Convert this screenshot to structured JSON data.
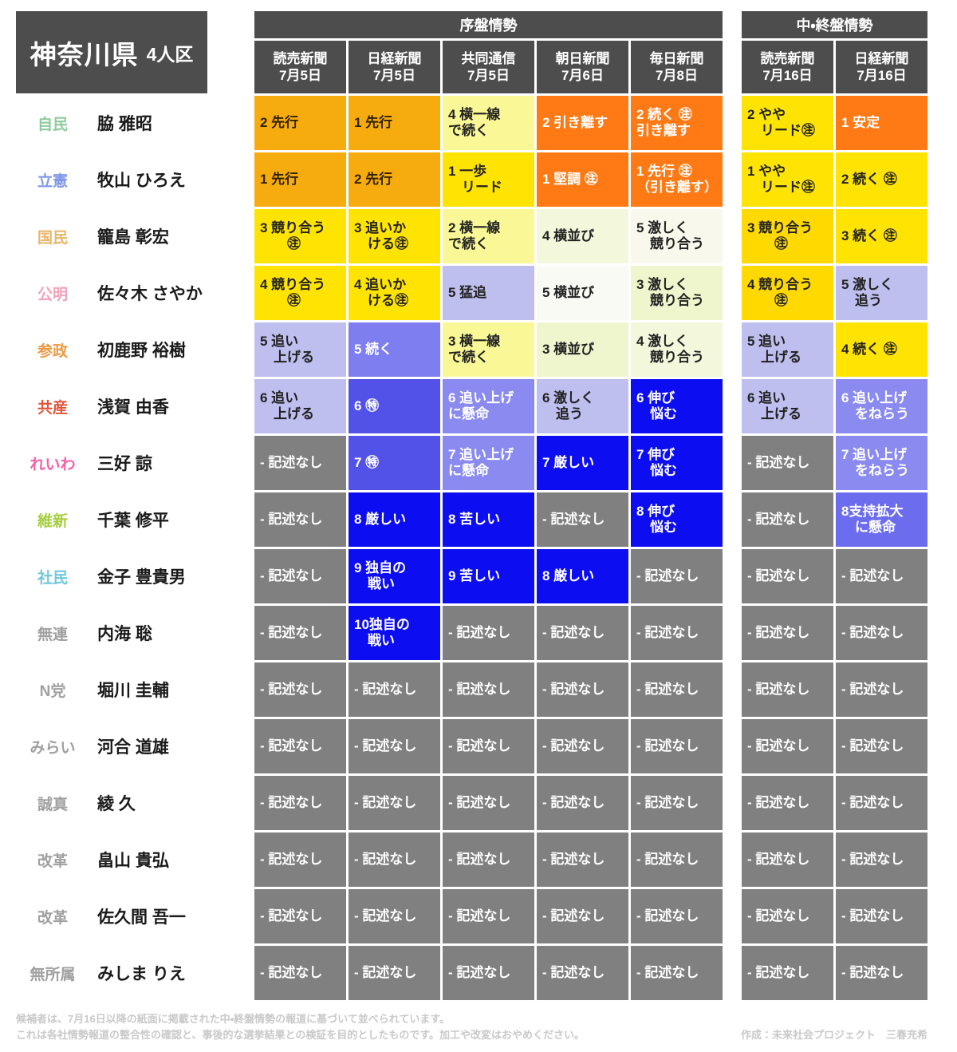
{
  "title": {
    "prefecture": "神奈川県",
    "district": "4人区"
  },
  "header": {
    "group1": {
      "label": "序盤情勢",
      "columns": [
        {
          "paper": "読売新聞",
          "date": "7月5日"
        },
        {
          "paper": "日経新聞",
          "date": "7月5日"
        },
        {
          "paper": "共同通信",
          "date": "7月5日"
        },
        {
          "paper": "朝日新聞",
          "date": "7月6日"
        },
        {
          "paper": "毎日新聞",
          "date": "7月8日"
        }
      ]
    },
    "group2": {
      "label": "中・終盤情勢",
      "columns": [
        {
          "paper": "読売新聞",
          "date": "7月16日"
        },
        {
          "paper": "日経新聞",
          "date": "7月16日"
        }
      ]
    }
  },
  "rows": [
    {
      "party": "自民",
      "party_color": "#8fcb9e",
      "candidate": "脇 雅昭",
      "cells": [
        {
          "text": "2 先行",
          "bg": "#f6ac0f",
          "fg": "#332200"
        },
        {
          "text": "1 先行",
          "bg": "#f6ac0f",
          "fg": "#332200"
        },
        {
          "text": "4 横一線\nで続く",
          "bg": "#faf896",
          "fg": "#222222"
        },
        {
          "text": "2 引き離す",
          "bg": "#ff7a14",
          "fg": "#ffffff"
        },
        {
          "text": "2 続く ㊟\n引き離す",
          "bg": "#ff7a14",
          "fg": "#ffffff"
        },
        {
          "text": "2 やや\n　リード㊟",
          "bg": "#ffe403",
          "fg": "#222222"
        },
        {
          "text": "1 安定",
          "bg": "#ff7a14",
          "fg": "#ffffff"
        }
      ]
    },
    {
      "party": "立憲",
      "party_color": "#7e96e8",
      "candidate": "牧山 ひろえ",
      "cells": [
        {
          "text": "1 先行",
          "bg": "#f6ac0f",
          "fg": "#332200"
        },
        {
          "text": "2 先行",
          "bg": "#f6ac0f",
          "fg": "#332200"
        },
        {
          "text": "1 一歩\n　リード",
          "bg": "#ffe403",
          "fg": "#222222"
        },
        {
          "text": "1 堅調 ㊟",
          "bg": "#ff7a14",
          "fg": "#ffffff"
        },
        {
          "text": "1 先行 ㊟\n（引き離す）",
          "bg": "#ff7a14",
          "fg": "#ffffff"
        },
        {
          "text": "1 やや\n　リード㊟",
          "bg": "#ffe403",
          "fg": "#222222"
        },
        {
          "text": "2 続く ㊟",
          "bg": "#ffe403",
          "fg": "#222222"
        }
      ]
    },
    {
      "party": "国民",
      "party_color": "#e8b66b",
      "candidate": "籠島 彰宏",
      "cells": [
        {
          "text": "3 競り合う\n　　㊟",
          "bg": "#ffe403",
          "fg": "#222222"
        },
        {
          "text": "3 追いか\n　ける㊟",
          "bg": "#ffe403",
          "fg": "#222222"
        },
        {
          "text": "2 横一線\nで続く",
          "bg": "#faf896",
          "fg": "#222222"
        },
        {
          "text": "4 横並び",
          "bg": "#f3f7db",
          "fg": "#222222"
        },
        {
          "text": "5 激しく\n　競り合う",
          "bg": "#f8f9ec",
          "fg": "#222222"
        },
        {
          "text": "3 競り合う\n　　㊟",
          "bg": "#ffd900",
          "fg": "#222222"
        },
        {
          "text": "3 続く ㊟",
          "bg": "#ffe403",
          "fg": "#222222"
        }
      ]
    },
    {
      "party": "公明",
      "party_color": "#f2a3bc",
      "candidate": "佐々木 さやか",
      "cells": [
        {
          "text": "4 競り合う\n　　㊟",
          "bg": "#ffe403",
          "fg": "#222222"
        },
        {
          "text": "4 追いか\n　ける㊟",
          "bg": "#ffe403",
          "fg": "#222222"
        },
        {
          "text": "5 猛追",
          "bg": "#bebeef",
          "fg": "#222222"
        },
        {
          "text": "5 横並び",
          "bg": "#fafaf4",
          "fg": "#222222"
        },
        {
          "text": "3 激しく\n　競り合う",
          "bg": "#eff5cc",
          "fg": "#222222"
        },
        {
          "text": "4 競り合う\n　　㊟",
          "bg": "#ffd900",
          "fg": "#222222"
        },
        {
          "text": "5 激しく\n　追う",
          "bg": "#bebeef",
          "fg": "#222222"
        }
      ]
    },
    {
      "party": "参政",
      "party_color": "#ec9a45",
      "candidate": "初鹿野 裕樹",
      "cells": [
        {
          "text": "5 追い\n　上げる",
          "bg": "#bebeef",
          "fg": "#222222"
        },
        {
          "text": "5 続く",
          "bg": "#7e7ef0",
          "fg": "#ffffff"
        },
        {
          "text": "3 横一線\nで続く",
          "bg": "#faf896",
          "fg": "#222222"
        },
        {
          "text": "3 横並び",
          "bg": "#eff5cc",
          "fg": "#222222"
        },
        {
          "text": "4 激しく\n　競り合う",
          "bg": "#f3f7db",
          "fg": "#222222"
        },
        {
          "text": "5 追い\n　上げる",
          "bg": "#bebeef",
          "fg": "#222222"
        },
        {
          "text": "4 続く ㊟",
          "bg": "#ffe403",
          "fg": "#222222"
        }
      ]
    },
    {
      "party": "共産",
      "party_color": "#e1543a",
      "candidate": "浅賀 由香",
      "cells": [
        {
          "text": "6 追い\n　上げる",
          "bg": "#bebeef",
          "fg": "#222222"
        },
        {
          "text": "6 ㊕",
          "bg": "#5252e8",
          "fg": "#ffffff"
        },
        {
          "text": "6 追い上げ\nに懸命",
          "bg": "#8a8af0",
          "fg": "#ffffff"
        },
        {
          "text": "6 激しく\n　追う",
          "bg": "#bebeef",
          "fg": "#222222"
        },
        {
          "text": "6 伸び\n　悩む",
          "bg": "#0d0df2",
          "fg": "#ffffff"
        },
        {
          "text": "6 追い\n　上げる",
          "bg": "#bebeef",
          "fg": "#222222"
        },
        {
          "text": "6 追い上げ\n　をねらう",
          "bg": "#8a8af0",
          "fg": "#ffffff"
        }
      ]
    },
    {
      "party": "れいわ",
      "party_color": "#f45fa9",
      "candidate": "三好 諒",
      "cells": [
        {
          "text": "- 記述なし",
          "bg": "#808080",
          "fg": "#ffffff"
        },
        {
          "text": "7 ㊕",
          "bg": "#5252e8",
          "fg": "#ffffff"
        },
        {
          "text": "7 追い上げ\nに懸命",
          "bg": "#8a8af0",
          "fg": "#ffffff"
        },
        {
          "text": "7 厳しい",
          "bg": "#0d0df2",
          "fg": "#ffffff"
        },
        {
          "text": "7 伸び\n　悩む",
          "bg": "#0d0df2",
          "fg": "#ffffff"
        },
        {
          "text": "- 記述なし",
          "bg": "#808080",
          "fg": "#ffffff"
        },
        {
          "text": "7 追い上げ\n　をねらう",
          "bg": "#8a8af0",
          "fg": "#ffffff"
        }
      ]
    },
    {
      "party": "維新",
      "party_color": "#a5ce3c",
      "candidate": "千葉 修平",
      "cells": [
        {
          "text": "- 記述なし",
          "bg": "#808080",
          "fg": "#ffffff"
        },
        {
          "text": "8 厳しい",
          "bg": "#0d0df2",
          "fg": "#ffffff"
        },
        {
          "text": "8 苦しい",
          "bg": "#0d0df2",
          "fg": "#ffffff"
        },
        {
          "text": "- 記述なし",
          "bg": "#808080",
          "fg": "#ffffff"
        },
        {
          "text": "8 伸び\n　悩む",
          "bg": "#0d0df2",
          "fg": "#ffffff"
        },
        {
          "text": "- 記述なし",
          "bg": "#808080",
          "fg": "#ffffff"
        },
        {
          "text": "8支持拡大\n　に懸命",
          "bg": "#6c6cef",
          "fg": "#ffffff"
        }
      ]
    },
    {
      "party": "社民",
      "party_color": "#6fc8dc",
      "candidate": "金子 豊貴男",
      "cells": [
        {
          "text": "- 記述なし",
          "bg": "#808080",
          "fg": "#ffffff"
        },
        {
          "text": "9 独自の\n　戦い",
          "bg": "#0d0df2",
          "fg": "#ffffff"
        },
        {
          "text": "9 苦しい",
          "bg": "#0d0df2",
          "fg": "#ffffff"
        },
        {
          "text": "8 厳しい",
          "bg": "#0d0df2",
          "fg": "#ffffff"
        },
        {
          "text": "- 記述なし",
          "bg": "#808080",
          "fg": "#ffffff"
        },
        {
          "text": "- 記述なし",
          "bg": "#808080",
          "fg": "#ffffff"
        },
        {
          "text": "- 記述なし",
          "bg": "#808080",
          "fg": "#ffffff"
        }
      ]
    },
    {
      "party": "無連",
      "party_color": "#a0a0a0",
      "candidate": "内海 聡",
      "cells": [
        {
          "text": "- 記述なし",
          "bg": "#808080",
          "fg": "#ffffff"
        },
        {
          "text": "10独自の\n　戦い",
          "bg": "#0d0df2",
          "fg": "#ffffff"
        },
        {
          "text": "- 記述なし",
          "bg": "#808080",
          "fg": "#ffffff"
        },
        {
          "text": "- 記述なし",
          "bg": "#808080",
          "fg": "#ffffff"
        },
        {
          "text": "- 記述なし",
          "bg": "#808080",
          "fg": "#ffffff"
        },
        {
          "text": "- 記述なし",
          "bg": "#808080",
          "fg": "#ffffff"
        },
        {
          "text": "- 記述なし",
          "bg": "#808080",
          "fg": "#ffffff"
        }
      ]
    },
    {
      "party": "N党",
      "party_color": "#a0a0a0",
      "candidate": "堀川 圭輔",
      "cells": [
        {
          "text": "- 記述なし",
          "bg": "#808080",
          "fg": "#ffffff"
        },
        {
          "text": "- 記述なし",
          "bg": "#808080",
          "fg": "#ffffff"
        },
        {
          "text": "- 記述なし",
          "bg": "#808080",
          "fg": "#ffffff"
        },
        {
          "text": "- 記述なし",
          "bg": "#808080",
          "fg": "#ffffff"
        },
        {
          "text": "- 記述なし",
          "bg": "#808080",
          "fg": "#ffffff"
        },
        {
          "text": "- 記述なし",
          "bg": "#808080",
          "fg": "#ffffff"
        },
        {
          "text": "- 記述なし",
          "bg": "#808080",
          "fg": "#ffffff"
        }
      ]
    },
    {
      "party": "みらい",
      "party_color": "#a0a0a0",
      "candidate": "河合 道雄",
      "cells": [
        {
          "text": "- 記述なし",
          "bg": "#808080",
          "fg": "#ffffff"
        },
        {
          "text": "- 記述なし",
          "bg": "#808080",
          "fg": "#ffffff"
        },
        {
          "text": "- 記述なし",
          "bg": "#808080",
          "fg": "#ffffff"
        },
        {
          "text": "- 記述なし",
          "bg": "#808080",
          "fg": "#ffffff"
        },
        {
          "text": "- 記述なし",
          "bg": "#808080",
          "fg": "#ffffff"
        },
        {
          "text": "- 記述なし",
          "bg": "#808080",
          "fg": "#ffffff"
        },
        {
          "text": "- 記述なし",
          "bg": "#808080",
          "fg": "#ffffff"
        }
      ]
    },
    {
      "party": "誠真",
      "party_color": "#a0a0a0",
      "candidate": "綾 久",
      "cells": [
        {
          "text": "- 記述なし",
          "bg": "#808080",
          "fg": "#ffffff"
        },
        {
          "text": "- 記述なし",
          "bg": "#808080",
          "fg": "#ffffff"
        },
        {
          "text": "- 記述なし",
          "bg": "#808080",
          "fg": "#ffffff"
        },
        {
          "text": "- 記述なし",
          "bg": "#808080",
          "fg": "#ffffff"
        },
        {
          "text": "- 記述なし",
          "bg": "#808080",
          "fg": "#ffffff"
        },
        {
          "text": "- 記述なし",
          "bg": "#808080",
          "fg": "#ffffff"
        },
        {
          "text": "- 記述なし",
          "bg": "#808080",
          "fg": "#ffffff"
        }
      ]
    },
    {
      "party": "改革",
      "party_color": "#a0a0a0",
      "candidate": "畠山 貴弘",
      "cells": [
        {
          "text": "- 記述なし",
          "bg": "#808080",
          "fg": "#ffffff"
        },
        {
          "text": "- 記述なし",
          "bg": "#808080",
          "fg": "#ffffff"
        },
        {
          "text": "- 記述なし",
          "bg": "#808080",
          "fg": "#ffffff"
        },
        {
          "text": "- 記述なし",
          "bg": "#808080",
          "fg": "#ffffff"
        },
        {
          "text": "- 記述なし",
          "bg": "#808080",
          "fg": "#ffffff"
        },
        {
          "text": "- 記述なし",
          "bg": "#808080",
          "fg": "#ffffff"
        },
        {
          "text": "- 記述なし",
          "bg": "#808080",
          "fg": "#ffffff"
        }
      ]
    },
    {
      "party": "改革",
      "party_color": "#a0a0a0",
      "candidate": "佐久間 吾一",
      "cells": [
        {
          "text": "- 記述なし",
          "bg": "#808080",
          "fg": "#ffffff"
        },
        {
          "text": "- 記述なし",
          "bg": "#808080",
          "fg": "#ffffff"
        },
        {
          "text": "- 記述なし",
          "bg": "#808080",
          "fg": "#ffffff"
        },
        {
          "text": "- 記述なし",
          "bg": "#808080",
          "fg": "#ffffff"
        },
        {
          "text": "- 記述なし",
          "bg": "#808080",
          "fg": "#ffffff"
        },
        {
          "text": "- 記述なし",
          "bg": "#808080",
          "fg": "#ffffff"
        },
        {
          "text": "- 記述なし",
          "bg": "#808080",
          "fg": "#ffffff"
        }
      ]
    },
    {
      "party": "無所属",
      "party_color": "#a0a0a0",
      "candidate": "みしま りえ",
      "cells": [
        {
          "text": "- 記述なし",
          "bg": "#808080",
          "fg": "#ffffff"
        },
        {
          "text": "- 記述なし",
          "bg": "#808080",
          "fg": "#ffffff"
        },
        {
          "text": "- 記述なし",
          "bg": "#808080",
          "fg": "#ffffff"
        },
        {
          "text": "- 記述なし",
          "bg": "#808080",
          "fg": "#ffffff"
        },
        {
          "text": "- 記述なし",
          "bg": "#808080",
          "fg": "#ffffff"
        },
        {
          "text": "- 記述なし",
          "bg": "#808080",
          "fg": "#ffffff"
        },
        {
          "text": "- 記述なし",
          "bg": "#808080",
          "fg": "#ffffff"
        }
      ]
    }
  ],
  "footer": {
    "note1": "候補者は、7月16日以降の紙面に掲載された中・終盤情勢の報道に基づいて並べられています。",
    "note2": "これは各社情勢報道の整合性の確認と、事後的な選挙結果との検証を目的としたものです。加工や改変はおやめください。",
    "credit": "作成：未来社会プロジェクト　三春充希"
  },
  "chart_data": {
    "type": "table",
    "title": "神奈川県 4人区 情勢報道比較",
    "column_groups": [
      "序盤情勢",
      "中・終盤情勢"
    ],
    "columns": [
      "読売新聞 7月5日",
      "日経新聞 7月5日",
      "共同通信 7月5日",
      "朝日新聞 7月6日",
      "毎日新聞 7月8日",
      "読売新聞 7月16日",
      "日経新聞 7月16日"
    ],
    "rows": [
      {
        "party": "自民",
        "candidate": "脇 雅昭",
        "values": [
          "2 先行",
          "1 先行",
          "4 横一線で続く",
          "2 引き離す",
          "2 続く㊟ 引き離す",
          "2 ややリード㊟",
          "1 安定"
        ]
      },
      {
        "party": "立憲",
        "candidate": "牧山 ひろえ",
        "values": [
          "1 先行",
          "2 先行",
          "1 一歩リード",
          "1 堅調㊟",
          "1 先行㊟（引き離す）",
          "1 ややリード㊟",
          "2 続く㊟"
        ]
      },
      {
        "party": "国民",
        "candidate": "籠島 彰宏",
        "values": [
          "3 競り合う㊟",
          "3 追いかける㊟",
          "2 横一線で続く",
          "4 横並び",
          "5 激しく競り合う",
          "3 競り合う㊟",
          "3 続く㊟"
        ]
      },
      {
        "party": "公明",
        "candidate": "佐々木 さやか",
        "values": [
          "4 競り合う㊟",
          "4 追いかける㊟",
          "5 猛追",
          "5 横並び",
          "3 激しく競り合う",
          "4 競り合う㊟",
          "5 激しく追う"
        ]
      },
      {
        "party": "参政",
        "candidate": "初鹿野 裕樹",
        "values": [
          "5 追い上げる",
          "5 続く",
          "3 横一線で続く",
          "3 横並び",
          "4 激しく競り合う",
          "5 追い上げる",
          "4 続く㊟"
        ]
      },
      {
        "party": "共産",
        "candidate": "浅賀 由香",
        "values": [
          "6 追い上げる",
          "6 ㊕",
          "6 追い上げに懸命",
          "6 激しく追う",
          "6 伸び悩む",
          "6 追い上げる",
          "6 追い上げをねらう"
        ]
      },
      {
        "party": "れいわ",
        "candidate": "三好 諒",
        "values": [
          "- 記述なし",
          "7 ㊕",
          "7 追い上げに懸命",
          "7 厳しい",
          "7 伸び悩む",
          "- 記述なし",
          "7 追い上げをねらう"
        ]
      },
      {
        "party": "維新",
        "candidate": "千葉 修平",
        "values": [
          "- 記述なし",
          "8 厳しい",
          "8 苦しい",
          "- 記述なし",
          "8 伸び悩む",
          "- 記述なし",
          "8 支持拡大に懸命"
        ]
      },
      {
        "party": "社民",
        "candidate": "金子 豊貴男",
        "values": [
          "- 記述なし",
          "9 独自の戦い",
          "9 苦しい",
          "8 厳しい",
          "- 記述なし",
          "- 記述なし",
          "- 記述なし"
        ]
      },
      {
        "party": "無連",
        "candidate": "内海 聡",
        "values": [
          "- 記述なし",
          "10 独自の戦い",
          "- 記述なし",
          "- 記述なし",
          "- 記述なし",
          "- 記述なし",
          "- 記述なし"
        ]
      },
      {
        "party": "N党",
        "candidate": "堀川 圭輔",
        "values": [
          "- 記述なし",
          "- 記述なし",
          "- 記述なし",
          "- 記述なし",
          "- 記述なし",
          "- 記述なし",
          "- 記述なし"
        ]
      },
      {
        "party": "みらい",
        "candidate": "河合 道雄",
        "values": [
          "- 記述なし",
          "- 記述なし",
          "- 記述なし",
          "- 記述なし",
          "- 記述なし",
          "- 記述なし",
          "- 記述なし"
        ]
      },
      {
        "party": "誠真",
        "candidate": "綾 久",
        "values": [
          "- 記述なし",
          "- 記述なし",
          "- 記述なし",
          "- 記述なし",
          "- 記述なし",
          "- 記述なし",
          "- 記述なし"
        ]
      },
      {
        "party": "改革",
        "candidate": "畠山 貴弘",
        "values": [
          "- 記述なし",
          "- 記述なし",
          "- 記述なし",
          "- 記述なし",
          "- 記述なし",
          "- 記述なし",
          "- 記述なし"
        ]
      },
      {
        "party": "改革",
        "candidate": "佐久間 吾一",
        "values": [
          "- 記述なし",
          "- 記述なし",
          "- 記述なし",
          "- 記述なし",
          "- 記述なし",
          "- 記述なし",
          "- 記述なし"
        ]
      },
      {
        "party": "無所属",
        "candidate": "みしま りえ",
        "values": [
          "- 記述なし",
          "- 記述なし",
          "- 記述なし",
          "- 記述なし",
          "- 記述なし",
          "- 記述なし",
          "- 記述なし"
        ]
      }
    ],
    "legend_colors": {
      "lead_strong": "#ff7a14",
      "lead": "#f6ac0f",
      "close_yellow": "#ffe403",
      "close_pale": "#faf896",
      "even_pale": "#f3f7db",
      "chasing_light": "#bebeef",
      "chasing_mid": "#8a8af0",
      "struggling_blue": "#0d0df2",
      "no_mention_gray": "#808080"
    }
  }
}
